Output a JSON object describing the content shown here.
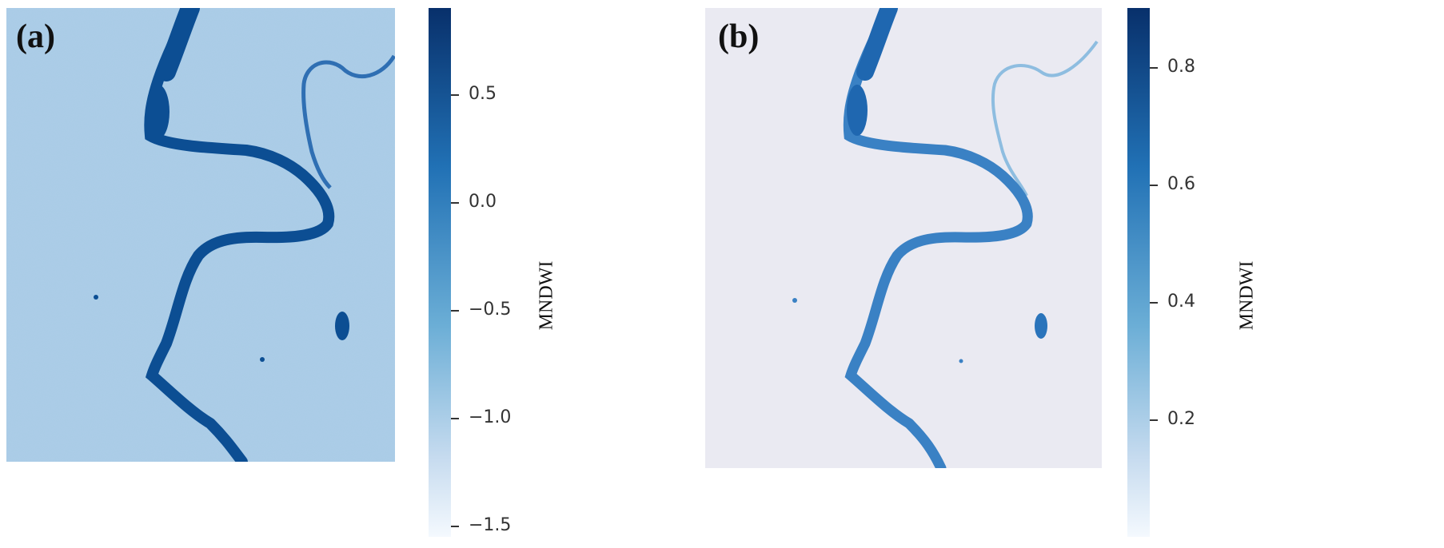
{
  "panels": [
    {
      "label": "(a)"
    },
    {
      "label": "(b)"
    }
  ],
  "chart_data": [
    {
      "type": "heatmap",
      "panel_label": "(a)",
      "colorbar": {
        "label": "MNDWI",
        "range": [
          -1.55,
          0.9
        ],
        "ticks": [
          0.5,
          0.0,
          -0.5,
          -1.0,
          -1.5
        ],
        "tick_labels": [
          "0.5",
          "0.0",
          "−0.5",
          "−1.0",
          "−1.5"
        ],
        "colormap": "Blues"
      },
      "colors": {
        "background": "#a9cce6",
        "river": "#0c4e93",
        "low": "#f4f9fe",
        "high": "#08306b"
      }
    },
    {
      "type": "heatmap",
      "panel_label": "(b)",
      "colorbar": {
        "label": "MNDWI",
        "range": [
          0.0,
          0.9
        ],
        "ticks": [
          0.8,
          0.6,
          0.4,
          0.2
        ],
        "tick_labels": [
          "0.8",
          "0.6",
          "0.4",
          "0.2"
        ],
        "colormap": "Blues"
      },
      "colors": {
        "background": "#eaeaf2",
        "river": "#3a81c4",
        "low": "#f4f9fe",
        "high": "#08306b"
      }
    }
  ]
}
